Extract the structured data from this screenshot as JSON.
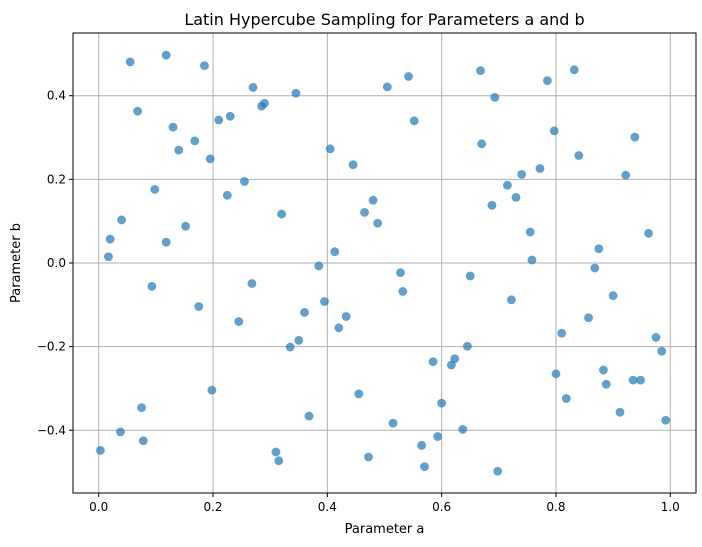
{
  "chart_data": {
    "type": "scatter",
    "title": "Latin Hypercube Sampling for Parameters a and b",
    "xlabel": "Parameter a",
    "ylabel": "Parameter b",
    "xlim": [
      -0.045,
      1.045
    ],
    "ylim": [
      -0.55,
      0.55
    ],
    "xticks": [
      0.0,
      0.2,
      0.4,
      0.6,
      0.8,
      1.0
    ],
    "xtick_labels": [
      "0.0",
      "0.2",
      "0.4",
      "0.6",
      "0.8",
      "1.0"
    ],
    "yticks": [
      -0.4,
      -0.2,
      0.0,
      0.2,
      0.4
    ],
    "ytick_labels": [
      "−0.4",
      "−0.2",
      "0.0",
      "0.2",
      "0.4"
    ],
    "grid": true,
    "marker_color": "#1f77b4",
    "marker_alpha": 0.7,
    "points": [
      [
        0.003,
        -0.448
      ],
      [
        0.017,
        0.015
      ],
      [
        0.02,
        0.057
      ],
      [
        0.038,
        -0.404
      ],
      [
        0.04,
        0.103
      ],
      [
        0.055,
        0.481
      ],
      [
        0.068,
        0.363
      ],
      [
        0.075,
        -0.346
      ],
      [
        0.078,
        -0.425
      ],
      [
        0.093,
        -0.056
      ],
      [
        0.098,
        0.176
      ],
      [
        0.118,
        0.05
      ],
      [
        0.118,
        0.497
      ],
      [
        0.13,
        0.325
      ],
      [
        0.14,
        0.27
      ],
      [
        0.152,
        0.088
      ],
      [
        0.168,
        0.292
      ],
      [
        0.175,
        -0.104
      ],
      [
        0.185,
        0.472
      ],
      [
        0.195,
        0.249
      ],
      [
        0.198,
        -0.304
      ],
      [
        0.21,
        0.342
      ],
      [
        0.225,
        0.162
      ],
      [
        0.23,
        0.351
      ],
      [
        0.245,
        -0.14
      ],
      [
        0.255,
        0.195
      ],
      [
        0.268,
        -0.049
      ],
      [
        0.27,
        0.42
      ],
      [
        0.285,
        0.375
      ],
      [
        0.29,
        0.382
      ],
      [
        0.31,
        -0.452
      ],
      [
        0.315,
        -0.473
      ],
      [
        0.32,
        0.117
      ],
      [
        0.335,
        -0.201
      ],
      [
        0.345,
        0.406
      ],
      [
        0.35,
        -0.185
      ],
      [
        0.36,
        -0.118
      ],
      [
        0.368,
        -0.366
      ],
      [
        0.385,
        -0.007
      ],
      [
        0.395,
        -0.092
      ],
      [
        0.405,
        0.273
      ],
      [
        0.413,
        0.027
      ],
      [
        0.42,
        -0.155
      ],
      [
        0.433,
        -0.128
      ],
      [
        0.445,
        0.235
      ],
      [
        0.455,
        -0.313
      ],
      [
        0.465,
        0.121
      ],
      [
        0.472,
        -0.464
      ],
      [
        0.48,
        0.15
      ],
      [
        0.488,
        0.095
      ],
      [
        0.505,
        0.421
      ],
      [
        0.515,
        -0.383
      ],
      [
        0.528,
        -0.023
      ],
      [
        0.532,
        -0.068
      ],
      [
        0.542,
        0.446
      ],
      [
        0.552,
        0.34
      ],
      [
        0.565,
        -0.436
      ],
      [
        0.57,
        -0.487
      ],
      [
        0.585,
        -0.236
      ],
      [
        0.593,
        -0.415
      ],
      [
        0.6,
        -0.335
      ],
      [
        0.617,
        -0.244
      ],
      [
        0.623,
        -0.229
      ],
      [
        0.637,
        -0.398
      ],
      [
        0.645,
        -0.199
      ],
      [
        0.65,
        -0.031
      ],
      [
        0.668,
        0.46
      ],
      [
        0.67,
        0.285
      ],
      [
        0.688,
        0.138
      ],
      [
        0.693,
        0.396
      ],
      [
        0.698,
        -0.498
      ],
      [
        0.715,
        0.186
      ],
      [
        0.722,
        -0.088
      ],
      [
        0.73,
        0.157
      ],
      [
        0.74,
        0.212
      ],
      [
        0.755,
        0.074
      ],
      [
        0.758,
        0.007
      ],
      [
        0.772,
        0.226
      ],
      [
        0.785,
        0.436
      ],
      [
        0.797,
        0.316
      ],
      [
        0.8,
        -0.265
      ],
      [
        0.81,
        -0.168
      ],
      [
        0.818,
        -0.324
      ],
      [
        0.832,
        0.462
      ],
      [
        0.84,
        0.257
      ],
      [
        0.857,
        -0.131
      ],
      [
        0.868,
        -0.012
      ],
      [
        0.875,
        0.034
      ],
      [
        0.883,
        -0.256
      ],
      [
        0.888,
        -0.29
      ],
      [
        0.9,
        -0.078
      ],
      [
        0.912,
        -0.357
      ],
      [
        0.922,
        0.21
      ],
      [
        0.935,
        -0.28
      ],
      [
        0.938,
        0.301
      ],
      [
        0.948,
        -0.28
      ],
      [
        0.962,
        0.071
      ],
      [
        0.975,
        -0.178
      ],
      [
        0.985,
        -0.211
      ],
      [
        0.992,
        -0.376
      ]
    ]
  }
}
